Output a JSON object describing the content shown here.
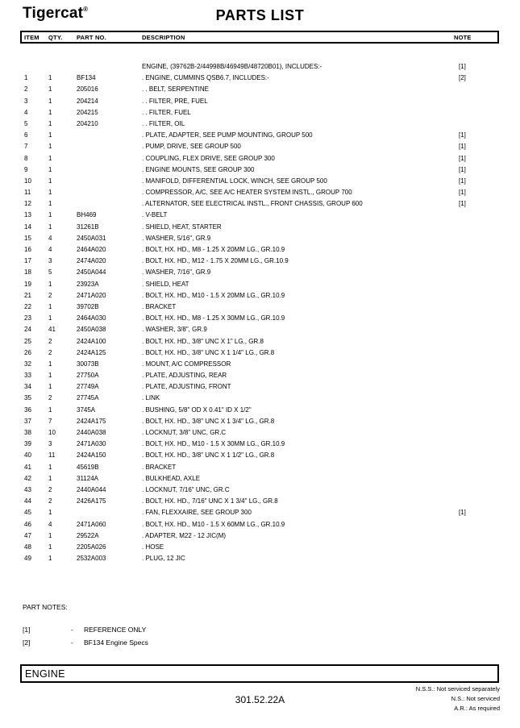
{
  "header": {
    "logo_text": "Tigercat",
    "registered_mark": "®",
    "title": "PARTS LIST"
  },
  "table": {
    "columns": {
      "item": "ITEM",
      "qty": "QTY.",
      "part": "PART NO.",
      "desc": "DESCRIPTION",
      "note": "NOTE"
    },
    "rows": [
      {
        "item": "",
        "qty": "",
        "part": "",
        "desc": "ENGINE, (39762B-2/44998B/46949B/48720B01), INCLUDES:-",
        "note": "[1]"
      },
      {
        "item": "1",
        "qty": "1",
        "part": "BF134",
        "desc": ". ENGINE, CUMMINS QSB6.7, INCLUDES:-",
        "note": "[2]"
      },
      {
        "item": "2",
        "qty": "1",
        "part": "205016",
        "desc": ". . BELT, SERPENTINE",
        "note": ""
      },
      {
        "item": "3",
        "qty": "1",
        "part": "204214",
        "desc": ". . FILTER, PRE, FUEL",
        "note": ""
      },
      {
        "item": "4",
        "qty": "1",
        "part": "204215",
        "desc": ". . FILTER, FUEL",
        "note": ""
      },
      {
        "item": "5",
        "qty": "1",
        "part": "204210",
        "desc": ". . FILTER, OIL",
        "note": ""
      },
      {
        "item": "6",
        "qty": "1",
        "part": "",
        "desc": ". PLATE, ADAPTER, SEE PUMP MOUNTING, GROUP 500",
        "note": "[1]"
      },
      {
        "item": "7",
        "qty": "1",
        "part": "",
        "desc": ". PUMP, DRIVE, SEE GROUP 500",
        "note": "[1]"
      },
      {
        "item": "8",
        "qty": "1",
        "part": "",
        "desc": ". COUPLING, FLEX DRIVE, SEE GROUP 300",
        "note": "[1]"
      },
      {
        "item": "9",
        "qty": "1",
        "part": "",
        "desc": ". ENGINE MOUNTS, SEE GROUP 300",
        "note": "[1]"
      },
      {
        "item": "10",
        "qty": "1",
        "part": "",
        "desc": ". MANIFOLD, DIFFERENTIAL LOCK, WINCH, SEE GROUP 500",
        "note": "[1]"
      },
      {
        "item": "11",
        "qty": "1",
        "part": "",
        "desc": ". COMPRESSOR, A/C, SEE A/C HEATER SYSTEM INSTL., GROUP 700",
        "note": "[1]"
      },
      {
        "item": "12",
        "qty": "1",
        "part": "",
        "desc": ". ALTERNATOR, SEE ELECTRICAL INSTL., FRONT CHASSIS, GROUP 600",
        "note": "[1]"
      },
      {
        "item": "13",
        "qty": "1",
        "part": "BH469",
        "desc": ". V-BELT",
        "note": ""
      },
      {
        "item": "14",
        "qty": "1",
        "part": "31261B",
        "desc": ". SHIELD, HEAT, STARTER",
        "note": ""
      },
      {
        "item": "15",
        "qty": "4",
        "part": "2450A031",
        "desc": ". WASHER, 5/16\", GR.9",
        "note": ""
      },
      {
        "item": "16",
        "qty": "4",
        "part": "2464A020",
        "desc": ". BOLT, HX. HD., M8 - 1.25 X 20MM LG., GR.10.9",
        "note": ""
      },
      {
        "item": "17",
        "qty": "3",
        "part": "2474A020",
        "desc": ". BOLT, HX. HD., M12 - 1.75 X 20MM LG., GR.10.9",
        "note": ""
      },
      {
        "item": "18",
        "qty": "5",
        "part": "2450A044",
        "desc": ". WASHER, 7/16\", GR.9",
        "note": ""
      },
      {
        "item": "19",
        "qty": "1",
        "part": "23923A",
        "desc": ". SHIELD, HEAT",
        "note": ""
      },
      {
        "item": "21",
        "qty": "2",
        "part": "2471A020",
        "desc": ". BOLT, HX. HD., M10 - 1.5 X 20MM LG., GR.10.9",
        "note": ""
      },
      {
        "item": "22",
        "qty": "1",
        "part": "39702B",
        "desc": ". BRACKET",
        "note": ""
      },
      {
        "item": "23",
        "qty": "1",
        "part": "2464A030",
        "desc": ". BOLT, HX. HD., M8 - 1.25 X 30MM LG., GR.10.9",
        "note": ""
      },
      {
        "item": "24",
        "qty": "41",
        "part": "2450A038",
        "desc": ". WASHER, 3/8\", GR.9",
        "note": ""
      },
      {
        "item": "25",
        "qty": "2",
        "part": "2424A100",
        "desc": ". BOLT, HX. HD., 3/8\" UNC X 1\" LG., GR.8",
        "note": ""
      },
      {
        "item": "26",
        "qty": "2",
        "part": "2424A125",
        "desc": ". BOLT, HX. HD., 3/8\" UNC X 1 1/4\" LG., GR.8",
        "note": ""
      },
      {
        "item": "32",
        "qty": "1",
        "part": "30073B",
        "desc": ". MOUNT, A/C COMPRESSOR",
        "note": ""
      },
      {
        "item": "33",
        "qty": "1",
        "part": "27750A",
        "desc": ". PLATE, ADJUSTING, REAR",
        "note": ""
      },
      {
        "item": "34",
        "qty": "1",
        "part": "27749A",
        "desc": ". PLATE, ADJUSTING, FRONT",
        "note": ""
      },
      {
        "item": "35",
        "qty": "2",
        "part": "27745A",
        "desc": ". LINK",
        "note": ""
      },
      {
        "item": "36",
        "qty": "1",
        "part": "3745A",
        "desc": ". BUSHING, 5/8\" OD X 0.41\" ID X 1/2\"",
        "note": ""
      },
      {
        "item": "37",
        "qty": "7",
        "part": "2424A175",
        "desc": ". BOLT, HX. HD., 3/8\" UNC X 1 3/4\" LG., GR.8",
        "note": ""
      },
      {
        "item": "38",
        "qty": "10",
        "part": "2440A038",
        "desc": ". LOCKNUT, 3/8\" UNC, GR.C",
        "note": ""
      },
      {
        "item": "39",
        "qty": "3",
        "part": "2471A030",
        "desc": ". BOLT, HX. HD., M10 - 1.5 X 30MM LG., GR.10.9",
        "note": ""
      },
      {
        "item": "40",
        "qty": "11",
        "part": "2424A150",
        "desc": ". BOLT, HX. HD., 3/8\" UNC X 1 1/2\" LG., GR.8",
        "note": ""
      },
      {
        "item": "41",
        "qty": "1",
        "part": "45619B",
        "desc": ". BRACKET",
        "note": ""
      },
      {
        "item": "42",
        "qty": "1",
        "part": "31124A",
        "desc": ". BULKHEAD, AXLE",
        "note": ""
      },
      {
        "item": "43",
        "qty": "2",
        "part": "2440A044",
        "desc": ". LOCKNUT, 7/16\" UNC, GR.C",
        "note": ""
      },
      {
        "item": "44",
        "qty": "2",
        "part": "2426A175",
        "desc": ". BOLT, HX. HD., 7/16\" UNC X 1 3/4\" LG., GR.8",
        "note": ""
      },
      {
        "item": "45",
        "qty": "1",
        "part": "",
        "desc": ". FAN, FLEXXAIRE, SEE GROUP 300",
        "note": "[1]"
      },
      {
        "item": "46",
        "qty": "4",
        "part": "2471A060",
        "desc": ". BOLT, HX. HD., M10 - 1.5 X 60MM LG., GR.10.9",
        "note": ""
      },
      {
        "item": "47",
        "qty": "1",
        "part": "29522A",
        "desc": ". ADAPTER, M22 - 12 JIC(M)",
        "note": ""
      },
      {
        "item": "48",
        "qty": "1",
        "part": "2205A026",
        "desc": ". HOSE",
        "note": ""
      },
      {
        "item": "49",
        "qty": "1",
        "part": "2532A003",
        "desc": ". PLUG, 12 JIC",
        "note": ""
      }
    ]
  },
  "part_notes": {
    "title": "PART NOTES:",
    "items": [
      {
        "ref": "[1]",
        "separator": "-",
        "text": "REFERENCE ONLY"
      },
      {
        "ref": "[2]",
        "separator": "-",
        "text": "BF134 Engine Specs"
      }
    ]
  },
  "section": {
    "label": "ENGINE"
  },
  "footer": {
    "page_code": "301.52.22A",
    "legend": [
      "N.S.S.: Not serviced separately",
      "N.S.: Not serviced",
      "A.R.: As required"
    ]
  }
}
